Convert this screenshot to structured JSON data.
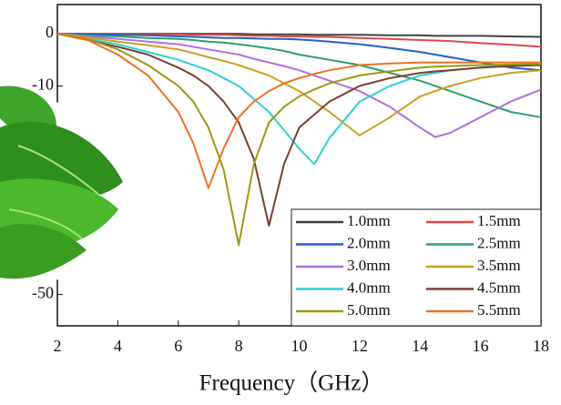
{
  "chart_data": {
    "type": "line",
    "x_label": "Frequency（GHz）",
    "x": [
      2,
      3,
      4,
      5,
      6,
      6.5,
      7,
      7.5,
      8,
      8.5,
      9,
      9.5,
      10,
      10.5,
      11,
      12,
      13,
      14,
      14.5,
      15,
      16,
      17,
      18
    ],
    "xlim": [
      2,
      18
    ],
    "xticks": [
      2,
      4,
      6,
      8,
      10,
      12,
      14,
      16,
      18
    ],
    "ylim": [
      -56,
      5.6
    ],
    "yticks": [
      0,
      -10,
      -50
    ],
    "series": [
      {
        "name": "1.0mm",
        "color": "#404040",
        "values": [
          0,
          0,
          0,
          0,
          0,
          0,
          0,
          0,
          0,
          -0.1,
          -0.1,
          -0.1,
          -0.1,
          -0.2,
          -0.2,
          -0.2,
          -0.3,
          -0.3,
          -0.4,
          -0.4,
          -0.4,
          -0.5,
          -0.6
        ]
      },
      {
        "name": "1.5mm",
        "color": "#e04848",
        "values": [
          0,
          0,
          0,
          -0.1,
          -0.1,
          -0.2,
          -0.2,
          -0.2,
          -0.3,
          -0.4,
          -0.4,
          -0.5,
          -0.5,
          -0.6,
          -0.6,
          -0.8,
          -1,
          -1.2,
          -1.3,
          -1.4,
          -1.8,
          -2.1,
          -2.5
        ]
      },
      {
        "name": "2.0mm",
        "color": "#2262c4",
        "values": [
          0,
          -0.1,
          -0.2,
          -0.3,
          -0.5,
          -0.6,
          -0.7,
          -0.8,
          -0.8,
          -0.9,
          -1,
          -1,
          -1.1,
          -1.3,
          -1.5,
          -2,
          -2.7,
          -3.5,
          -4,
          -4.5,
          -5.5,
          -6.5,
          -7
        ]
      },
      {
        "name": "2.5mm",
        "color": "#2e9e6e",
        "values": [
          0,
          -0.3,
          -0.5,
          -0.8,
          -1,
          -1.2,
          -1.5,
          -1.7,
          -2,
          -2.4,
          -2.8,
          -3.3,
          -4,
          -4.5,
          -5,
          -6,
          -7.5,
          -9,
          -10,
          -11,
          -13,
          -15,
          -16
        ]
      },
      {
        "name": "3.0mm",
        "color": "#b070e0",
        "values": [
          0,
          -0.5,
          -1,
          -1.5,
          -2,
          -2.5,
          -3,
          -3.5,
          -4,
          -4.8,
          -5.5,
          -6.2,
          -7,
          -8,
          -9,
          -11,
          -14,
          -18,
          -19.8,
          -19,
          -16,
          -13,
          -10.7
        ]
      },
      {
        "name": "3.5mm",
        "color": "#c8a020",
        "values": [
          0,
          -0.7,
          -1.5,
          -2.2,
          -3,
          -3.7,
          -4.5,
          -5.2,
          -6,
          -7,
          -8,
          -9.5,
          -11,
          -13,
          -15,
          -19.5,
          -16,
          -12,
          -11,
          -10,
          -8.5,
          -7.5,
          -7
        ]
      },
      {
        "name": "4.0mm",
        "color": "#30d0d0",
        "values": [
          0,
          -1,
          -2,
          -3.5,
          -5,
          -6,
          -7,
          -8.5,
          -10,
          -12.5,
          -15,
          -18.5,
          -22,
          -25,
          -20,
          -13,
          -10,
          -8,
          -7.5,
          -7,
          -6.5,
          -6,
          -5.8
        ]
      },
      {
        "name": "4.5mm",
        "color": "#7a4030",
        "values": [
          0,
          -1.2,
          -2.5,
          -4,
          -6.5,
          -8,
          -10,
          -13,
          -17,
          -24,
          -36.8,
          -25,
          -18,
          -15.5,
          -13,
          -10,
          -8.5,
          -7.5,
          -7.2,
          -7,
          -6.5,
          -6.2,
          -6
        ]
      },
      {
        "name": "5.0mm",
        "color": "#9a9a10",
        "values": [
          0,
          -1,
          -3,
          -6,
          -10,
          -13,
          -18,
          -26,
          -40.5,
          -25,
          -17,
          -14,
          -12,
          -10.7,
          -9.5,
          -8,
          -7.2,
          -6.5,
          -6.3,
          -6.2,
          -6,
          -5.9,
          -5.8
        ]
      },
      {
        "name": "5.5mm",
        "color": "#f07020",
        "values": [
          0,
          -1.2,
          -4,
          -8,
          -15,
          -21,
          -29.6,
          -22,
          -16,
          -13,
          -11,
          -9.5,
          -8.5,
          -7.7,
          -7,
          -6,
          -5.7,
          -5.5,
          -5.5,
          -5.5,
          -5.5,
          -5.5,
          -5.5
        ]
      }
    ]
  }
}
